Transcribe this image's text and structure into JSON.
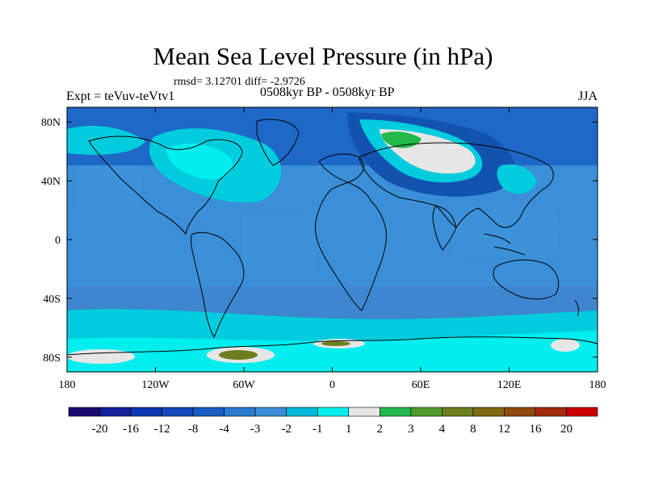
{
  "title": "Mean Sea Level Pressure (in hPa)",
  "stats": "rmsd= 3.12701 diff= -2.9726",
  "subtitle": "0508kyr BP - 0508kyr BP",
  "experiment": "Expt = teVuv-teVtv1",
  "season": "JJA",
  "colors": {
    "ocean_base": "#3A8FD8",
    "land_base": "#3E86CF",
    "arctic_band": "#1E68C8",
    "deep_negative": "#1452B0",
    "light_negative": "#00CCDD",
    "near_zero": "#00EEEE",
    "neutral": "#E6E6E6",
    "positive_green": "#22B84A",
    "positive_olive": "#6B7F1E",
    "coastline": "#000000"
  },
  "chart_data": {
    "type": "map",
    "projection": "cylindrical-equidistant",
    "lon_range": [
      -180,
      180
    ],
    "lat_range": [
      -90,
      90
    ],
    "x_ticks": [
      "180",
      "120W",
      "60W",
      "0",
      "60E",
      "120E",
      "180"
    ],
    "y_ticks": [
      "80N",
      "40N",
      "0",
      "40S",
      "80S"
    ],
    "colorbar": {
      "labels": [
        "-20",
        "-16",
        "-12",
        "-8",
        "-4",
        "-3",
        "-2",
        "-1",
        "1",
        "2",
        "3",
        "4",
        "8",
        "12",
        "16",
        "20"
      ],
      "colors": [
        "#1B0A6E",
        "#11209A",
        "#0A37B0",
        "#1248B8",
        "#1A5BC2",
        "#2B79D0",
        "#3A8FD8",
        "#00B8D8",
        "#00EEEE",
        "#E6E6E6",
        "#22B84A",
        "#4F9A2C",
        "#6B7F1E",
        "#7E6A12",
        "#8F4A0F",
        "#A32A0C",
        "#CC0000"
      ]
    }
  }
}
